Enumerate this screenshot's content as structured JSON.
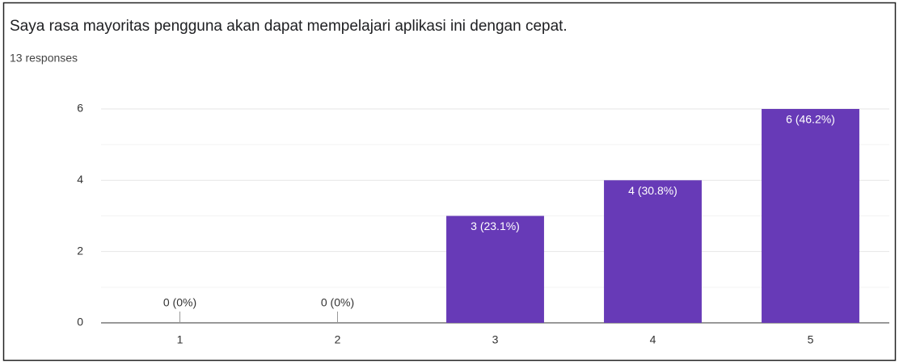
{
  "chart_data": {
    "type": "bar",
    "title": "Saya rasa mayoritas pengguna akan dapat mempelajari aplikasi ini dengan cepat.",
    "subtitle": "13 responses",
    "categories": [
      "1",
      "2",
      "3",
      "4",
      "5"
    ],
    "values": [
      0,
      0,
      3,
      4,
      6
    ],
    "value_labels": [
      "0 (0%)",
      "0 (0%)",
      "3 (23.1%)",
      "4 (30.8%)",
      "6 (46.2%)"
    ],
    "color": "#673ab7",
    "ylim": [
      0,
      6
    ],
    "yticks": [
      0,
      2,
      4,
      6
    ],
    "minor_yticks": [
      1,
      3,
      5
    ],
    "grid": true
  }
}
